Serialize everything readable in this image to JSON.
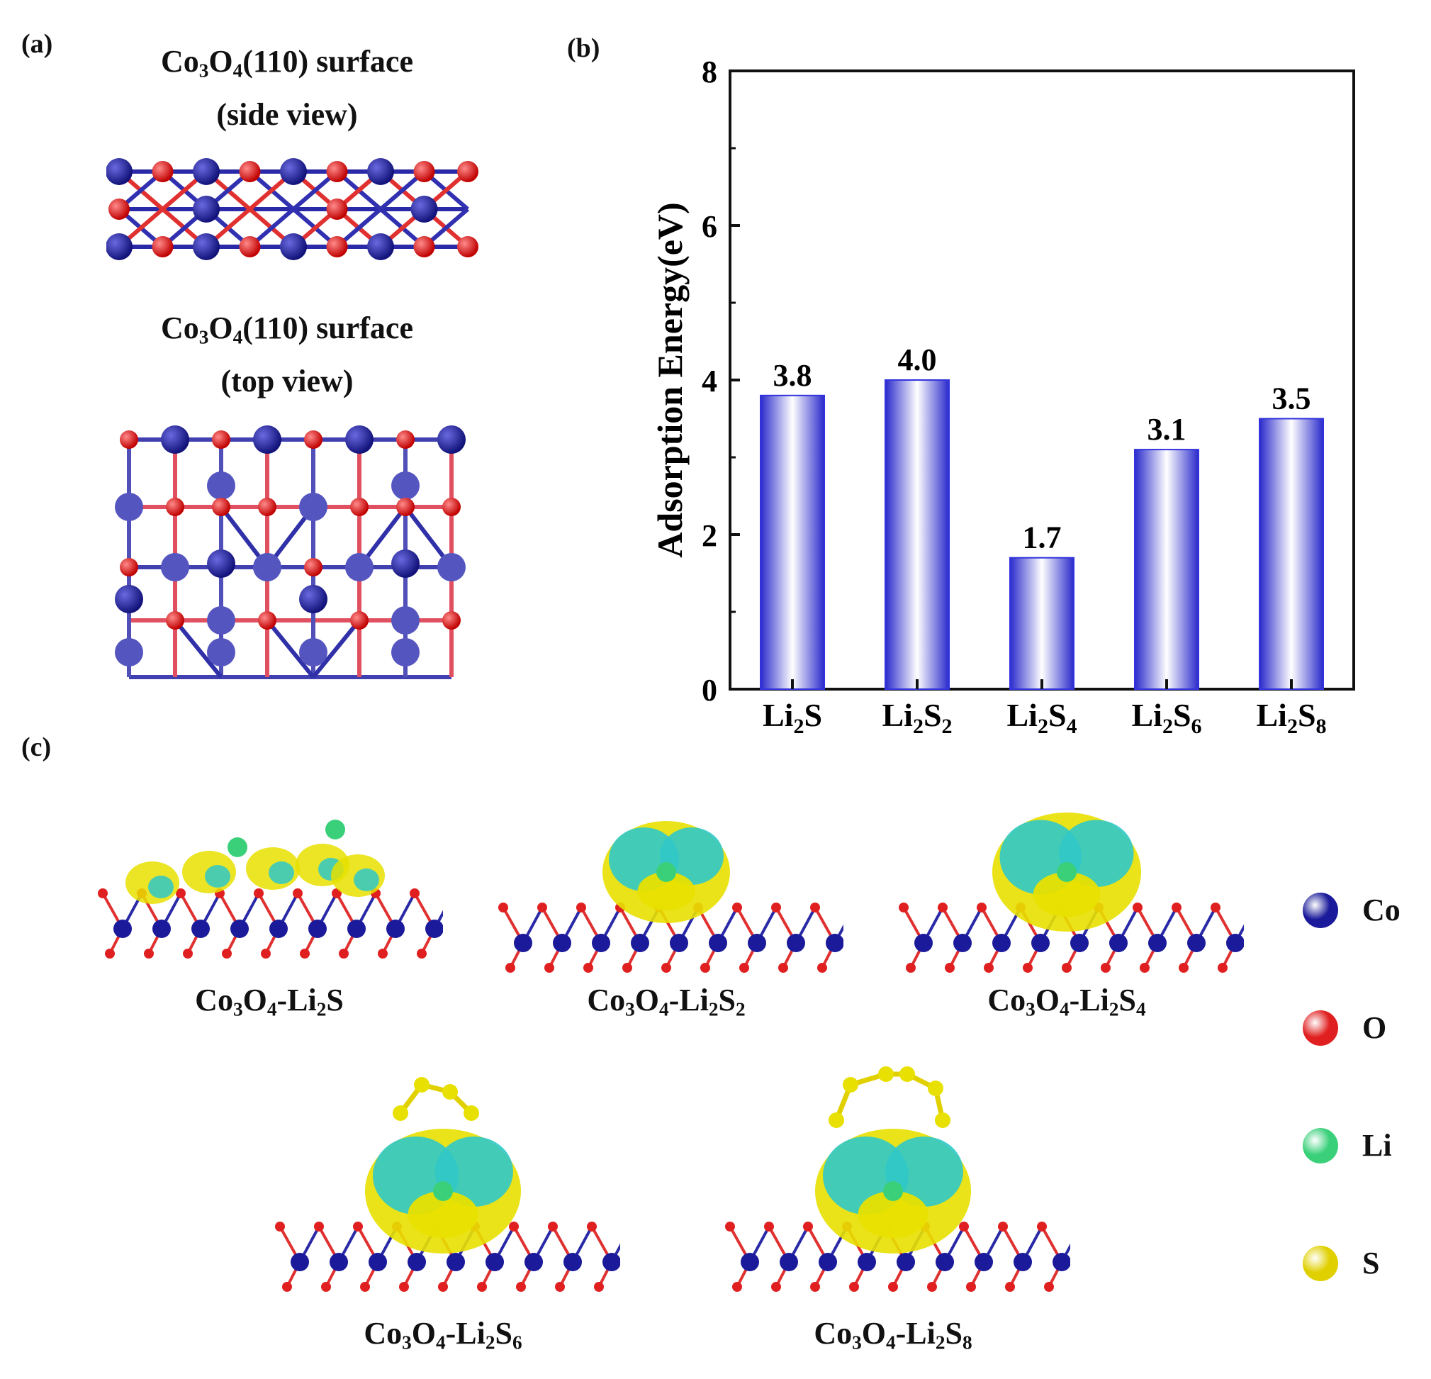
{
  "panel_labels": {
    "a": "(a)",
    "b": "(b)",
    "c": "(c)"
  },
  "panel_a": {
    "side_title": {
      "line1_parts": [
        "Co",
        "3",
        "O",
        "4",
        "(110) surface"
      ],
      "line2": "(side view)"
    },
    "top_title": {
      "line1_parts": [
        "Co",
        "3",
        "O",
        "4",
        "(110) surface"
      ],
      "line2": "(top view)"
    }
  },
  "chart_data": {
    "type": "bar",
    "categories": [
      {
        "base": "Li",
        "sub": "2",
        "tail": "S",
        "sub2": ""
      },
      {
        "base": "Li",
        "sub": "2",
        "tail": "S",
        "sub2": "2"
      },
      {
        "base": "Li",
        "sub": "2",
        "tail": "S",
        "sub2": "4"
      },
      {
        "base": "Li",
        "sub": "2",
        "tail": "S",
        "sub2": "6"
      },
      {
        "base": "Li",
        "sub": "2",
        "tail": "S",
        "sub2": "8"
      }
    ],
    "values": [
      3.8,
      4.0,
      1.7,
      3.1,
      3.5
    ],
    "value_labels": [
      "3.8",
      "4.0",
      "1.7",
      "3.1",
      "3.5"
    ],
    "ylabel": "Adsorption Energy(eV)",
    "xlabel": "",
    "ylim": [
      0,
      8
    ],
    "yticks": [
      "0",
      "2",
      "4",
      "6",
      "8"
    ],
    "grid": false,
    "bar_color": "#3333dd"
  },
  "panel_c": {
    "structures": [
      {
        "caption_parts": [
          "Co",
          "3",
          "O",
          "4",
          "-Li",
          "2",
          "S",
          ""
        ]
      },
      {
        "caption_parts": [
          "Co",
          "3",
          "O",
          "4",
          "-Li",
          "2",
          "S",
          "2"
        ]
      },
      {
        "caption_parts": [
          "Co",
          "3",
          "O",
          "4",
          "-Li",
          "2",
          "S",
          "4"
        ]
      },
      {
        "caption_parts": [
          "Co",
          "3",
          "O",
          "4",
          "-Li",
          "2",
          "S",
          "6"
        ]
      },
      {
        "caption_parts": [
          "Co",
          "3",
          "O",
          "4",
          "-Li",
          "2",
          "S",
          "8"
        ]
      }
    ]
  },
  "legend": [
    {
      "label": "Co",
      "color": "#1a1a9a"
    },
    {
      "label": "O",
      "color": "#e02020"
    },
    {
      "label": "Li",
      "color": "#3ad07a"
    },
    {
      "label": "S",
      "color": "#e0d000"
    }
  ]
}
